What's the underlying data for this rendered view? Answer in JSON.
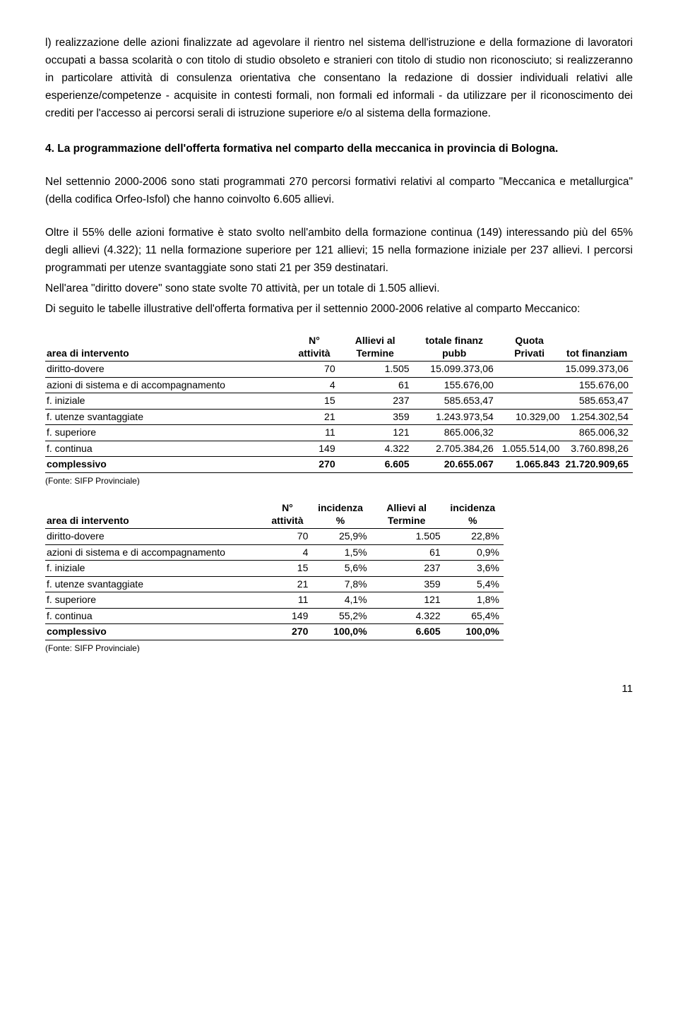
{
  "para1": "l) realizzazione delle azioni finalizzate ad agevolare il rientro nel sistema dell'istruzione e della formazione di lavoratori occupati a bassa scolarità o con titolo di studio obsoleto e stranieri con titolo di studio non riconosciuto; si realizzeranno in particolare attività di consulenza orientativa che consentano la redazione di dossier individuali relativi alle esperienze/competenze - acquisite in contesti formali, non formali ed informali - da utilizzare per il riconoscimento dei crediti per l'accesso ai percorsi serali di istruzione superiore e/o al sistema della formazione.",
  "heading": "4. La programmazione dell'offerta formativa nel comparto della meccanica in provincia di Bologna.",
  "para2": "Nel settennio 2000-2006 sono stati programmati 270 percorsi formativi relativi al comparto \"Meccanica e metallurgica\" (della codifica Orfeo-Isfol) che hanno coinvolto 6.605 allievi.",
  "para3": "Oltre il 55% delle azioni formative è stato svolto nell'ambito della formazione continua (149) interessando più del 65% degli allievi (4.322); 11 nella formazione superiore per 121 allievi; 15 nella formazione iniziale per 237 allievi. I percorsi programmati per utenze svantaggiate sono stati 21 per 359 destinatari.",
  "para4": "Nell'area \"diritto dovere\" sono state svolte 70 attività, per un totale di 1.505 allievi.",
  "para5": "Di seguito le tabelle illustrative dell'offerta formativa per il settennio 2000-2006 relative al comparto Meccanico:",
  "table1": {
    "headers": [
      "area di intervento",
      "N° attività",
      "Allievi al Termine",
      "totale finanz pubb",
      "Quota Privati",
      "tot finanziam"
    ],
    "rows": [
      [
        "diritto-dovere",
        "70",
        "1.505",
        "15.099.373,06",
        "",
        "15.099.373,06"
      ],
      [
        "azioni di sistema e di accompagnamento",
        "4",
        "61",
        "155.676,00",
        "",
        "155.676,00"
      ],
      [
        "f. iniziale",
        "15",
        "237",
        "585.653,47",
        "",
        "585.653,47"
      ],
      [
        "f. utenze svantaggiate",
        "21",
        "359",
        "1.243.973,54",
        "10.329,00",
        "1.254.302,54"
      ],
      [
        "f. superiore",
        "11",
        "121",
        "865.006,32",
        "",
        "865.006,32"
      ],
      [
        "f. continua",
        "149",
        "4.322",
        "2.705.384,26",
        "1.055.514,00",
        "3.760.898,26"
      ]
    ],
    "total": [
      "complessivo",
      "270",
      "6.605",
      "20.655.067",
      "1.065.843",
      "21.720.909,65"
    ]
  },
  "source": "(Fonte: SIFP Provinciale)",
  "table2": {
    "headers": [
      "area di intervento",
      "N° attività",
      "incidenza %",
      "Allievi al Termine",
      "incidenza %"
    ],
    "rows": [
      [
        "diritto-dovere",
        "70",
        "25,9%",
        "1.505",
        "22,8%"
      ],
      [
        "azioni di sistema e di accompagnamento",
        "4",
        "1,5%",
        "61",
        "0,9%"
      ],
      [
        "f. iniziale",
        "15",
        "5,6%",
        "237",
        "3,6%"
      ],
      [
        "f. utenze svantaggiate",
        "21",
        "7,8%",
        "359",
        "5,4%"
      ],
      [
        "f. superiore",
        "11",
        "4,1%",
        "121",
        "1,8%"
      ],
      [
        "f. continua",
        "149",
        "55,2%",
        "4.322",
        "65,4%"
      ]
    ],
    "total": [
      "complessivo",
      "270",
      "100,0%",
      "6.605",
      "100,0%"
    ]
  },
  "pageNum": "11"
}
